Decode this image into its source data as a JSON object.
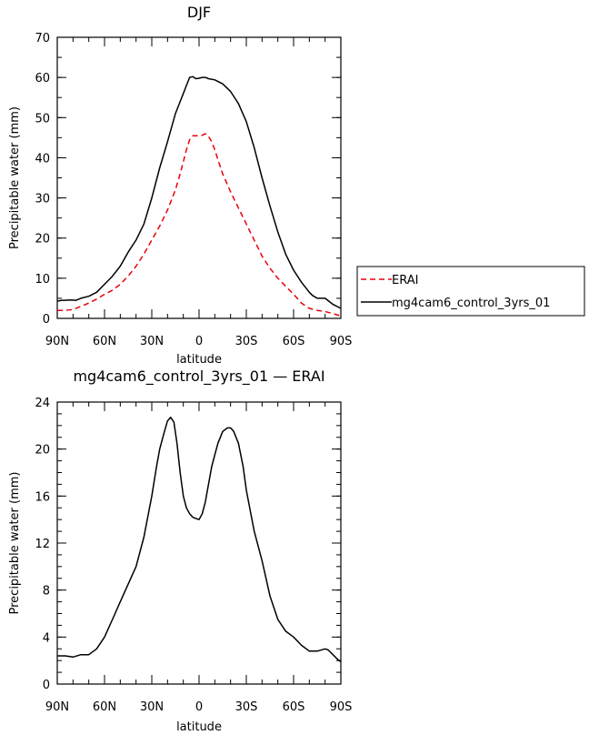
{
  "chart_data": [
    {
      "type": "line",
      "title": "DJF",
      "xlabel": "latitude",
      "ylabel": "Precipitable water (mm)",
      "xlim": [
        90,
        -90
      ],
      "ylim": [
        0,
        70
      ],
      "xticks": [
        90,
        60,
        30,
        0,
        -30,
        -60,
        -90
      ],
      "xtick_labels": [
        "90N",
        "60N",
        "30N",
        "0",
        "30S",
        "60S",
        "90S"
      ],
      "yticks": [
        0,
        10,
        20,
        30,
        40,
        50,
        60,
        70
      ],
      "ytick_labels": [
        "0",
        "10",
        "20",
        "30",
        "40",
        "50",
        "60",
        "70"
      ],
      "legend": "outside-right",
      "series": [
        {
          "name": "ERAI",
          "color": "#e8000b",
          "dash": "dashed",
          "x": [
            90,
            85,
            80,
            75,
            70,
            65,
            60,
            55,
            50,
            45,
            40,
            35,
            30,
            25,
            20,
            15,
            12,
            10,
            8,
            6,
            4,
            2,
            0,
            -2,
            -4,
            -6,
            -8,
            -10,
            -12,
            -15,
            -20,
            -25,
            -30,
            -35,
            -40,
            -45,
            -50,
            -55,
            -60,
            -65,
            -70,
            -75,
            -80,
            -85,
            -90
          ],
          "y": [
            2,
            2,
            2.2,
            3,
            3.8,
            4.8,
            6,
            7,
            8.5,
            10.5,
            13,
            16,
            19.5,
            23,
            27,
            32,
            36,
            39,
            42,
            44.5,
            45.5,
            45.5,
            45.5,
            45.6,
            46,
            45.3,
            44,
            42,
            39.5,
            36,
            31.5,
            27.5,
            23.5,
            19.5,
            15.5,
            12.5,
            10,
            8,
            6,
            3.8,
            2.5,
            2,
            1.7,
            1.2,
            0.6
          ]
        },
        {
          "name": "mg4cam6_control_3yrs_01",
          "color": "#000000",
          "dash": "solid",
          "x": [
            90,
            87,
            85,
            82,
            78,
            75,
            70,
            65,
            60,
            55,
            50,
            45,
            40,
            35,
            30,
            25,
            20,
            15,
            12,
            10,
            8,
            6,
            4,
            2,
            0,
            -2,
            -4,
            -6,
            -10,
            -15,
            -20,
            -25,
            -30,
            -35,
            -40,
            -45,
            -50,
            -55,
            -60,
            -65,
            -70,
            -72,
            -75,
            -80,
            -85,
            -90
          ],
          "y": [
            4.3,
            4.5,
            4.5,
            4.6,
            4.5,
            5,
            5.5,
            6.5,
            8.5,
            10.5,
            13,
            16.5,
            19.5,
            23.5,
            30,
            37.5,
            44,
            51,
            54,
            56,
            58,
            60,
            60.2,
            59.7,
            59.8,
            60,
            60,
            59.7,
            59.4,
            58.4,
            56.5,
            53.5,
            49,
            42.5,
            35,
            28,
            21.5,
            16,
            12,
            9,
            6.5,
            5.7,
            5,
            5,
            3.5,
            2.5
          ]
        }
      ]
    },
    {
      "type": "line",
      "title": "mg4cam6_control_3yrs_01 — ERAI",
      "xlabel": "latitude",
      "ylabel": "Precipitable water (mm)",
      "xlim": [
        90,
        -90
      ],
      "ylim": [
        0,
        24
      ],
      "xticks": [
        90,
        60,
        30,
        0,
        -30,
        -60,
        -90
      ],
      "xtick_labels": [
        "90N",
        "60N",
        "30N",
        "0",
        "30S",
        "60S",
        "90S"
      ],
      "yticks": [
        0,
        4,
        8,
        12,
        16,
        20,
        24
      ],
      "ytick_labels": [
        "0",
        "4",
        "8",
        "12",
        "16",
        "20",
        "24"
      ],
      "series": [
        {
          "color": "#000000",
          "dash": "solid",
          "x": [
            90,
            85,
            80,
            75,
            70,
            65,
            60,
            55,
            50,
            45,
            40,
            35,
            30,
            27,
            25,
            22,
            20,
            18,
            16,
            14,
            12,
            10,
            8,
            6,
            4,
            2,
            0,
            -2,
            -4,
            -6,
            -8,
            -10,
            -12,
            -15,
            -18,
            -20,
            -22,
            -25,
            -28,
            -30,
            -35,
            -40,
            -45,
            -50,
            -55,
            -60,
            -65,
            -70,
            -75,
            -80,
            -82,
            -85,
            -88,
            -90
          ],
          "y": [
            2.4,
            2.4,
            2.3,
            2.5,
            2.5,
            3,
            4,
            5.5,
            7,
            8.5,
            10,
            12.5,
            16,
            18.5,
            20,
            21.5,
            22.4,
            22.7,
            22.3,
            20.5,
            18,
            16,
            15,
            14.5,
            14.2,
            14.1,
            14,
            14.5,
            15.5,
            17,
            18.5,
            19.5,
            20.5,
            21.5,
            21.8,
            21.8,
            21.5,
            20.5,
            18.5,
            16.5,
            13,
            10.5,
            7.5,
            5.5,
            4.5,
            4,
            3.3,
            2.8,
            2.8,
            3,
            2.9,
            2.5,
            2.1,
            1.9
          ]
        }
      ]
    }
  ]
}
